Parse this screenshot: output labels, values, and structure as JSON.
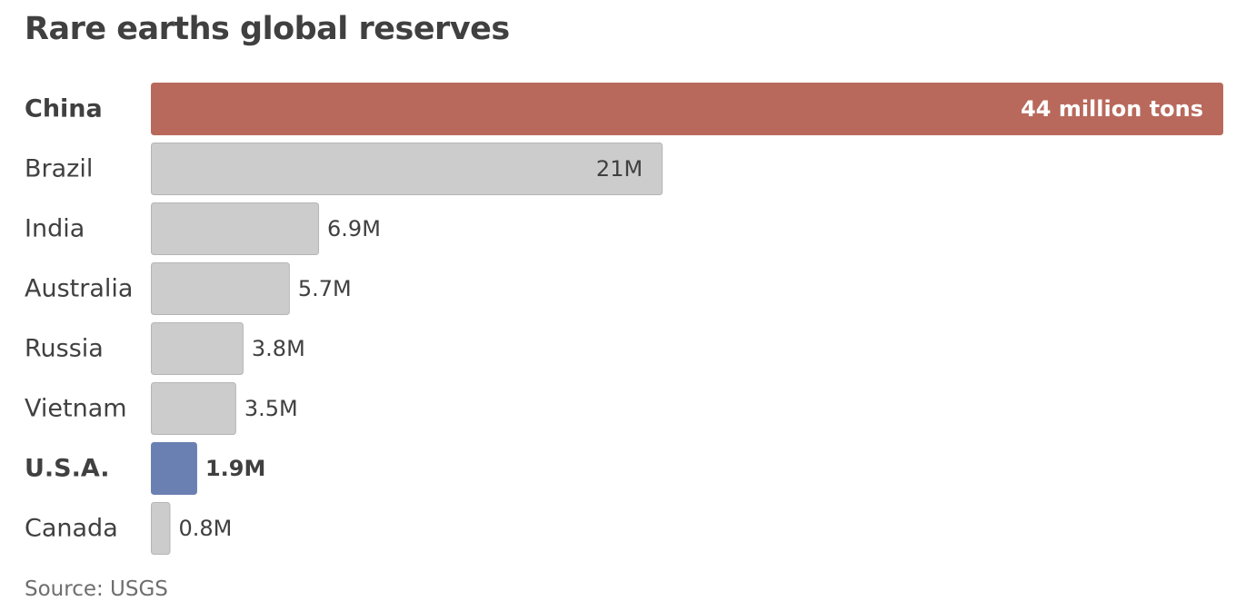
{
  "chart_data": {
    "type": "bar",
    "orientation": "horizontal",
    "title": "Rare earths global reserves",
    "categories": [
      "China",
      "Brazil",
      "India",
      "Australia",
      "Russia",
      "Vietnam",
      "U.S.A.",
      "Canada"
    ],
    "values": [
      44,
      21,
      6.9,
      5.7,
      3.8,
      3.5,
      1.9,
      0.8
    ],
    "value_labels": [
      "44 million tons",
      "21M",
      "6.9M",
      "5.7M",
      "3.8M",
      "3.5M",
      "1.9M",
      "0.8M"
    ],
    "unit": "million tons",
    "highlighted": [
      "China",
      "U.S.A."
    ],
    "xlim": [
      0,
      44
    ],
    "grid": false,
    "legend": "none",
    "colors": {
      "default": "#cccccc",
      "default_border": "#b5b5b5",
      "China": "#b8695c",
      "U.S.A.": "#6a80b2"
    },
    "source": "Source: USGS"
  }
}
